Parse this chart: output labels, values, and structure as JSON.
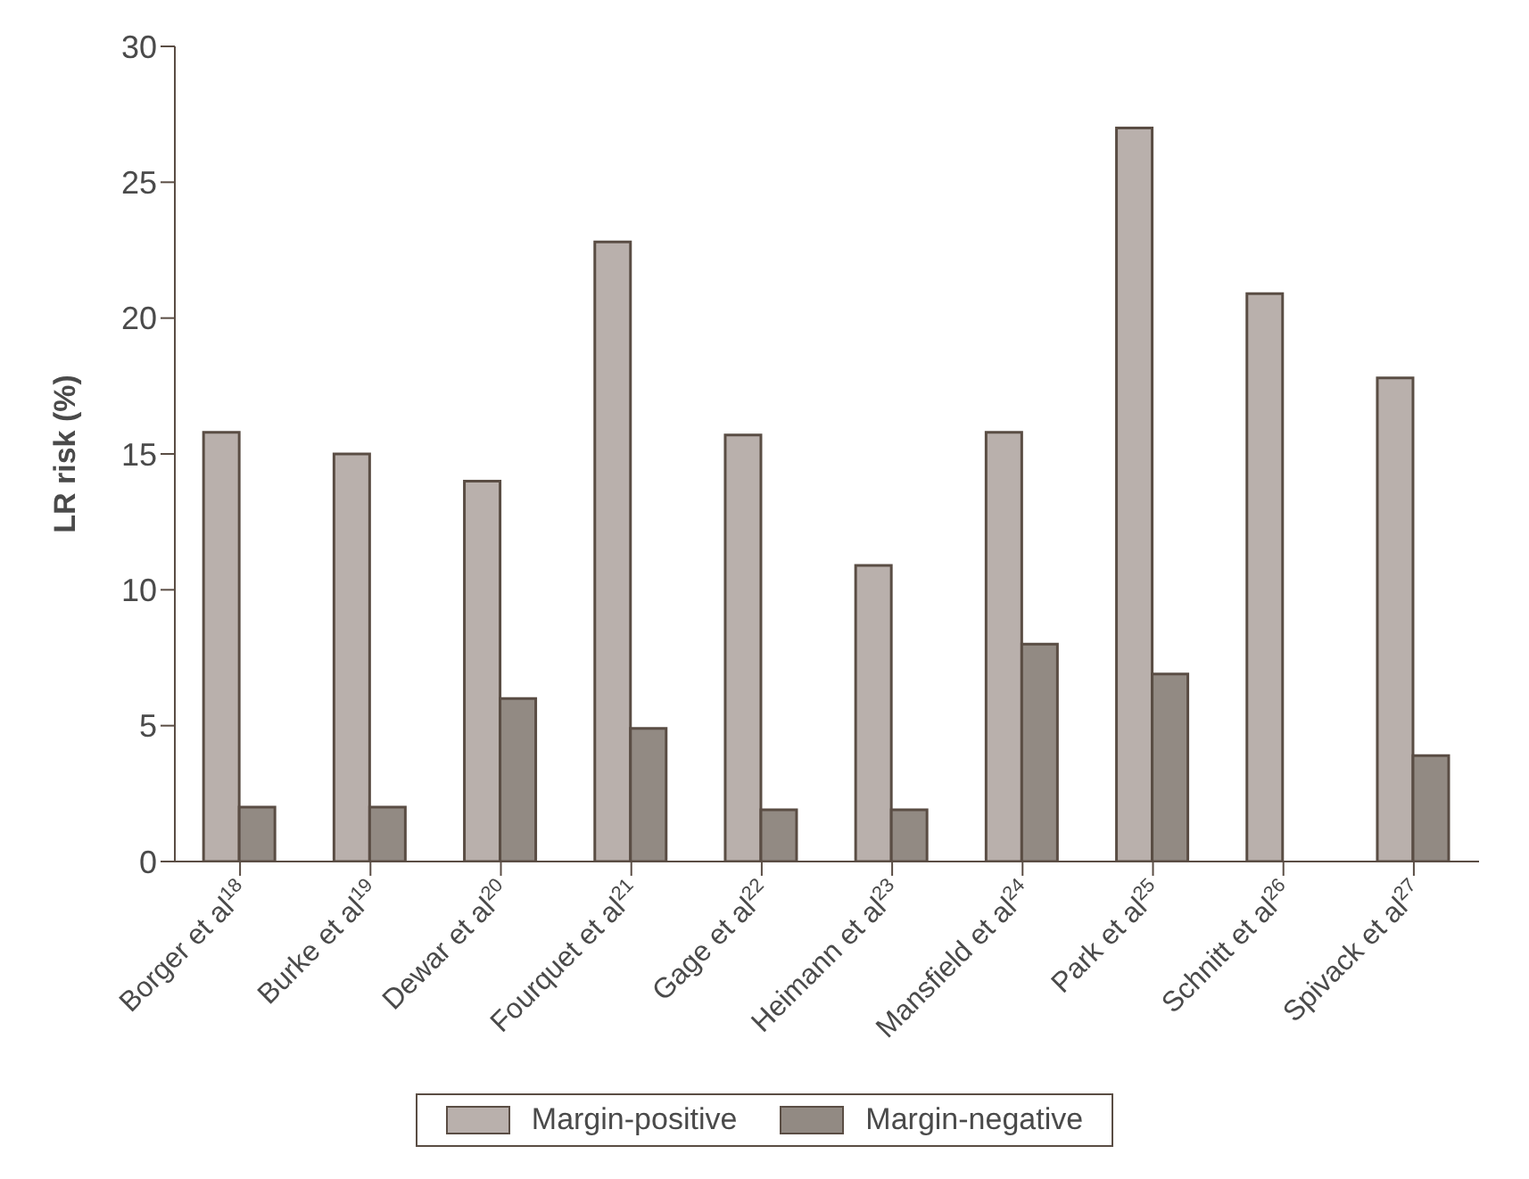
{
  "chart_data": {
    "type": "bar",
    "ylabel": "LR risk (%)",
    "categories": [
      "Borger et al$^{18}$",
      "Burke et al$^{19}$",
      "Dewar et al$^{20}$",
      "Fourquet et al$^{21}$",
      "Gage et al$^{22}$",
      "Heimann et al$^{23}$",
      "Mansfield et al$^{24}$",
      "Park et al$^{25}$",
      "Schnitt et al$^{26}$",
      "Spivack et al$^{27}$"
    ],
    "series": [
      {
        "name": "Margin-positive",
        "color": "#b9b0ac",
        "values": [
          15.8,
          15.0,
          14.0,
          22.8,
          15.7,
          10.9,
          15.8,
          27.0,
          20.9,
          17.8
        ]
      },
      {
        "name": "Margin-negative",
        "color": "#928a83",
        "values": [
          2.0,
          2.0,
          6.0,
          4.9,
          1.9,
          1.9,
          8.0,
          6.9,
          null,
          3.9
        ]
      }
    ],
    "ylim": [
      0,
      30
    ],
    "yticks": [
      0,
      5,
      10,
      15,
      20,
      25,
      30
    ],
    "grid": false,
    "legend": "bottom"
  }
}
